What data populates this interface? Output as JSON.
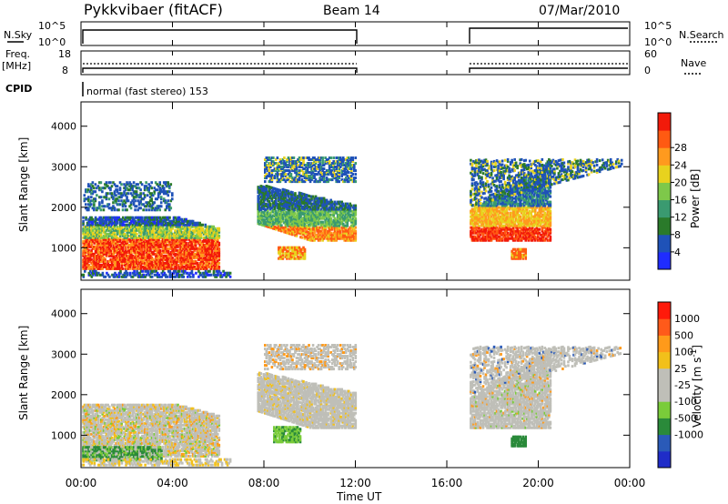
{
  "header": {
    "radar": "Pykkvibaer (fitACF)",
    "beam": "Beam 14",
    "date": "07/Mar/2010"
  },
  "top_panels": {
    "nsky_label": "N.Sky",
    "nsearch_label": "N.Search",
    "nsky_ticks": [
      "10^5",
      "10^0"
    ],
    "nsearch_ticks": [
      "10^5",
      "10^0"
    ],
    "freq_label_1": "Freq.",
    "freq_label_2": "[MHz]",
    "freq_ticks": [
      "18",
      "8"
    ],
    "nave_label": "Nave",
    "nave_ticks": [
      "60",
      "0"
    ],
    "cpid_label": "CPID",
    "cpid_text": "normal (fast stereo) 153"
  },
  "colors": {
    "power_scale": [
      "#1f2cff",
      "#1f52b8",
      "#2a7a2a",
      "#3a9a70",
      "#7ec84a",
      "#e8d21e",
      "#ff9a1e",
      "#ff5a12",
      "#f21a0a"
    ],
    "velocity_scale": [
      "#ff1a0a",
      "#ff5a1a",
      "#ff9a1a",
      "#f2c01a",
      "#bfbfb8",
      "#bfbfb8",
      "#7acc3a",
      "#2a8a3a",
      "#2a5ab8",
      "#1f2cc8"
    ]
  },
  "chart_data": [
    {
      "type": "heatmap",
      "title": "Power [dB]",
      "ylabel": "Slant Range [km]",
      "xlabel": "Time UT",
      "x_ticks": [
        "00:00",
        "04:00",
        "08:00",
        "12:00",
        "16:00",
        "20:00",
        "00:00"
      ],
      "y_ticks": [
        "1000",
        "2000",
        "3000",
        "4000"
      ],
      "ylim": [
        200,
        4600
      ],
      "colorbar_label": "Power [dB]",
      "colorbar_ticks": [
        "4",
        "8",
        "12",
        "16",
        "20",
        "24",
        "28"
      ],
      "colorbar_range": [
        0,
        32
      ]
    },
    {
      "type": "heatmap",
      "title": "Velocity [m s-1]",
      "ylabel": "Slant Range [km]",
      "xlabel": "Time UT",
      "x_ticks": [
        "00:00",
        "04:00",
        "08:00",
        "12:00",
        "16:00",
        "20:00",
        "00:00"
      ],
      "y_ticks": [
        "1000",
        "2000",
        "3000",
        "4000"
      ],
      "ylim": [
        200,
        4600
      ],
      "colorbar_label": "Velocity [m s",
      "colorbar_label_sup": "-1",
      "colorbar_label_end": "]",
      "colorbar_ticks": [
        "1000",
        "500",
        "100",
        "25",
        "-25",
        "-100",
        "-500",
        "-1000"
      ]
    }
  ]
}
